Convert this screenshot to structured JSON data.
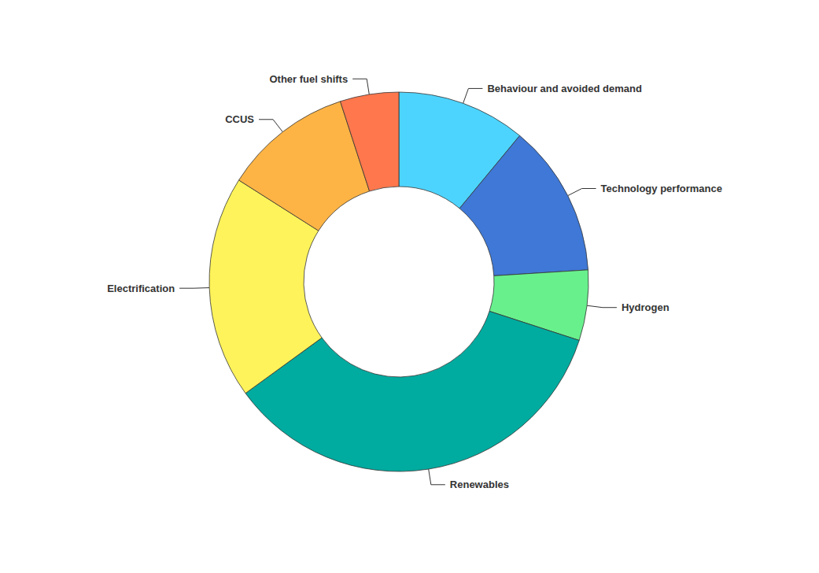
{
  "chart_data": {
    "type": "donut",
    "categories": [
      "Behaviour and avoided demand",
      "Technology performance",
      "Hydrogen",
      "Renewables",
      "Electrification",
      "CCUS",
      "Other fuel shifts"
    ],
    "values": [
      11,
      13,
      6,
      35,
      19,
      11,
      5
    ],
    "colors": [
      "#4dd4fe",
      "#3f78d6",
      "#68f08d",
      "#00ab9f",
      "#fef35a",
      "#feb445",
      "#ff774c"
    ],
    "data_labels": false
  }
}
